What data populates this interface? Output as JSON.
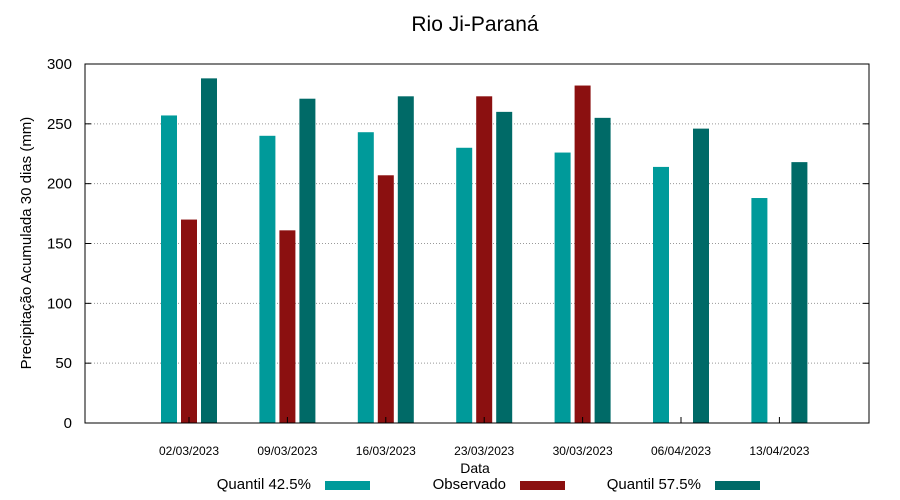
{
  "chart_data": {
    "type": "bar",
    "title": "Rio Ji-Paraná",
    "xlabel": "Data",
    "ylabel": "Precipitação Acumulada 30 dias (mm)",
    "ylim": [
      0,
      300
    ],
    "yticks": [
      0,
      50,
      100,
      150,
      200,
      250,
      300
    ],
    "grid": true,
    "legend_position": "bottom",
    "categories": [
      "02/03/2023",
      "09/03/2023",
      "16/03/2023",
      "23/03/2023",
      "30/03/2023",
      "06/04/2023",
      "13/04/2023"
    ],
    "series": [
      {
        "name": "Quantil 42.5%",
        "color": "#009a9a",
        "values": [
          257,
          240,
          243,
          230,
          226,
          214,
          188
        ]
      },
      {
        "name": "Observado",
        "color": "#8b1010",
        "values": [
          170,
          161,
          207,
          273,
          282,
          null,
          null
        ]
      },
      {
        "name": "Quantil 57.5%",
        "color": "#006a67",
        "values": [
          288,
          271,
          273,
          260,
          255,
          246,
          218
        ]
      }
    ]
  }
}
